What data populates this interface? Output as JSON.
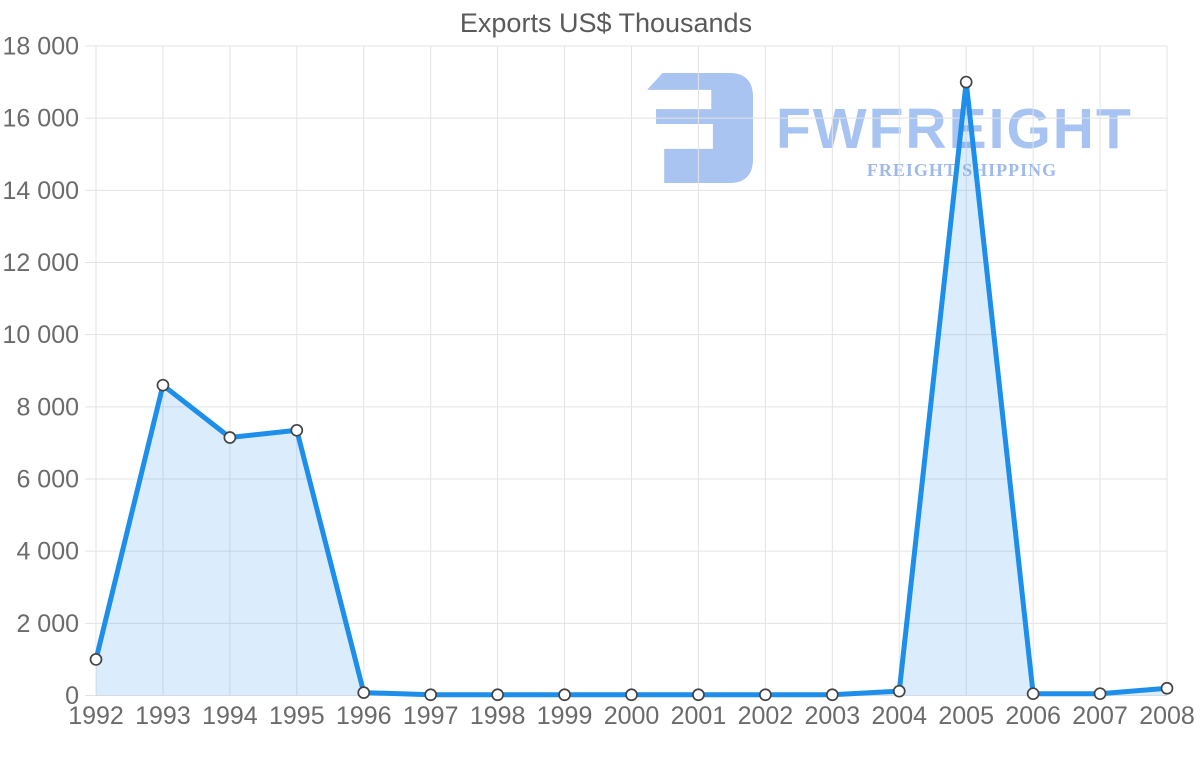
{
  "chart_data": {
    "type": "area",
    "title": "Exports US$ Thousands",
    "xlabel": "",
    "ylabel": "",
    "categories": [
      "1992",
      "1993",
      "1994",
      "1995",
      "1996",
      "1997",
      "1998",
      "1999",
      "2000",
      "2001",
      "2002",
      "2003",
      "2004",
      "2005",
      "2006",
      "2007",
      "2008"
    ],
    "series": [
      {
        "name": "Exports US$ Thousands",
        "values": [
          1000,
          8600,
          7150,
          7350,
          80,
          20,
          20,
          20,
          20,
          20,
          20,
          20,
          120,
          17000,
          50,
          50,
          200
        ]
      }
    ],
    "ylim": [
      0,
      18000
    ],
    "yticks": {
      "values": [
        0,
        2000,
        4000,
        6000,
        8000,
        10000,
        12000,
        14000,
        16000,
        18000
      ],
      "labels": [
        "0",
        "2 000",
        "4 000",
        "6 000",
        "8 000",
        "10 000",
        "12 000",
        "14 000",
        "16 000",
        "18 000"
      ]
    },
    "grid": true,
    "legend": "none",
    "colors": {
      "line": "#1d8eea",
      "fill": "rgba(30,142,234,0.16)",
      "grid": "#e3e3e3",
      "tick_label": "#6b6b6b",
      "title": "#5a5a5a",
      "marker_fill": "#ffffff",
      "marker_stroke": "#444444"
    }
  },
  "watermark": {
    "brand": "FWFREIGHT",
    "tagline": "FREIGHT SHIPPING",
    "icon": "fwfreight-logo-icon",
    "icon_color": "#a9c4f0",
    "brand_color": "#a7c3f2",
    "tagline_color": "#9fb9ea"
  }
}
